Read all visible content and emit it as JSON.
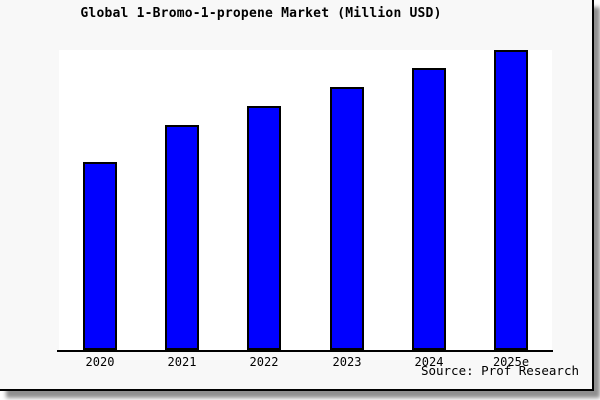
{
  "source_label": "Source: Prof Research",
  "colors": {
    "figure_bg": "#f8f8f8",
    "plot_bg": "#ffffff",
    "bar_fill": "#0000ff",
    "bar_border": "#000000",
    "axis": "#000000",
    "frame_border": "#000000",
    "shadow": "#8f8f8f",
    "text": "#000000"
  },
  "chart_data": {
    "type": "bar",
    "title": "Global 1-Bromo-1-propene Market (Million USD)",
    "categories": [
      "2020",
      "2021",
      "2022",
      "2023",
      "2024",
      "2025e"
    ],
    "values": [
      62.8,
      75.0,
      81.4,
      87.8,
      93.9,
      100.0
    ],
    "xlabel": "",
    "ylabel": "",
    "ylim": [
      0,
      100
    ],
    "grid": false,
    "legend": false,
    "y_axis_labels_visible": false,
    "source": "Source: Prof Research"
  }
}
